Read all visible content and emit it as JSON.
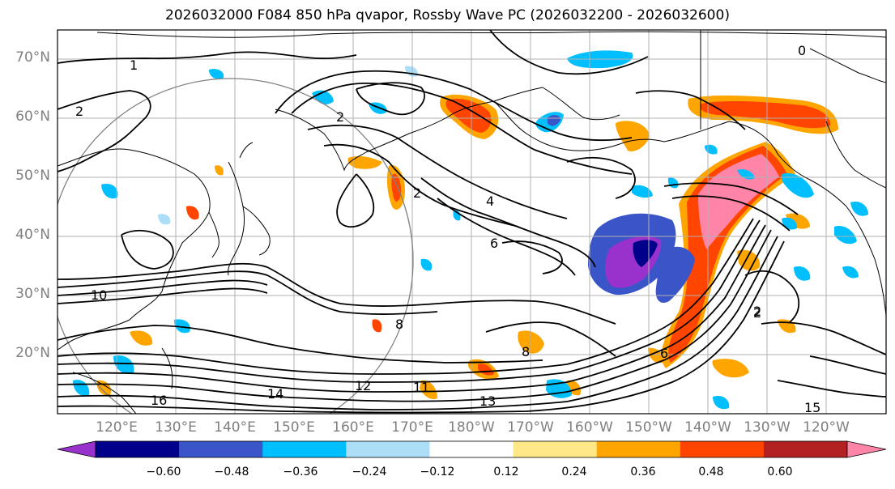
{
  "title": "2026032000 F084 850 hPa qvapor, Rossby Wave PC (2026032200 - 2026032600)",
  "lat_labels": [
    "70°N",
    "60°N",
    "50°N",
    "40°N",
    "30°N",
    "20°N"
  ],
  "lon_labels": [
    "120°E",
    "130°E",
    "140°E",
    "150°E",
    "160°E",
    "170°E",
    "180°W",
    "170°W",
    "160°W",
    "150°W",
    "140°W",
    "130°W",
    "120°W"
  ],
  "contour_labels": [
    "1",
    "2",
    "2",
    "2",
    "0",
    "2",
    "4",
    "6",
    "8",
    "8",
    "10",
    "11",
    "12",
    "13",
    "14",
    "16",
    "6",
    "2",
    "15"
  ],
  "colorbar": {
    "colors": [
      "#9932CC",
      "#00008B",
      "#3A55C8",
      "#00BFFF",
      "#ADDEF8",
      "#FFFFFF",
      "#FFE888",
      "#FFA500",
      "#FF4500",
      "#B22222",
      "#FF85A8"
    ],
    "ticks": [
      "−0.60",
      "−0.48",
      "−0.36",
      "−0.24",
      "−0.12",
      "0.12",
      "0.24",
      "0.36",
      "0.48",
      "0.60"
    ]
  }
}
